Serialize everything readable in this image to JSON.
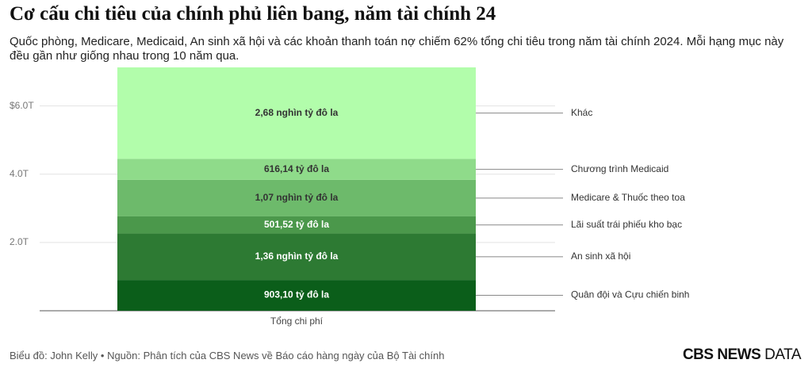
{
  "chart_data": {
    "type": "stacked_bar",
    "title": "Cơ cấu chi tiêu của chính phủ liên bang, năm tài chính 24",
    "subtitle": "Quốc phòng, Medicare, Medicaid, An sinh xã hội và các khoản thanh toán nợ chiếm 62% tổng chi tiêu trong năm tài chính 2024. Mỗi hạng mục này đều gần như giống nhau trong 10 năm qua.",
    "categories": [
      "Tổng chi phí"
    ],
    "series": [
      {
        "name": "Quân đội và Cựu chiến binh",
        "color": "#0b5e1a",
        "values": [
          0.9031
        ],
        "value_labels": [
          "903,10 tỷ đô la"
        ]
      },
      {
        "name": "An sinh xã hội",
        "color": "#2d7a33",
        "values": [
          1.36
        ],
        "value_labels": [
          "1,36 nghìn tỷ đô la"
        ]
      },
      {
        "name": "Lãi suất trái phiếu kho bạc",
        "color": "#4b984b",
        "values": [
          0.50152
        ],
        "value_labels": [
          "501,52 tỷ đô la"
        ]
      },
      {
        "name": "Medicare & Thuốc theo toa",
        "color": "#6dba6b",
        "values": [
          1.07
        ],
        "value_labels": [
          "1,07 nghìn tỷ đô la"
        ]
      },
      {
        "name": "Chương trình Medicaid",
        "color": "#8fdb8a",
        "values": [
          0.61614
        ],
        "value_labels": [
          "616,14 tỷ đô la"
        ]
      },
      {
        "name": "Khác",
        "color": "#b2fdab",
        "values": [
          2.68
        ],
        "value_labels": [
          "2,68 nghìn tỷ đô la"
        ]
      }
    ],
    "ylim": [
      0,
      7.2
    ],
    "yticks": [
      {
        "value": 2,
        "label": "2.0T"
      },
      {
        "value": 4,
        "label": "4.0T"
      },
      {
        "value": 6,
        "label": "$6.0T"
      }
    ],
    "grid": true
  },
  "footer": {
    "source": "Biểu đồ: John Kelly • Nguồn: Phân tích của CBS News về Báo cáo hàng ngày của Bộ Tài chính",
    "logo_bold": "CBS NEWS",
    "logo_light": "DATA"
  }
}
